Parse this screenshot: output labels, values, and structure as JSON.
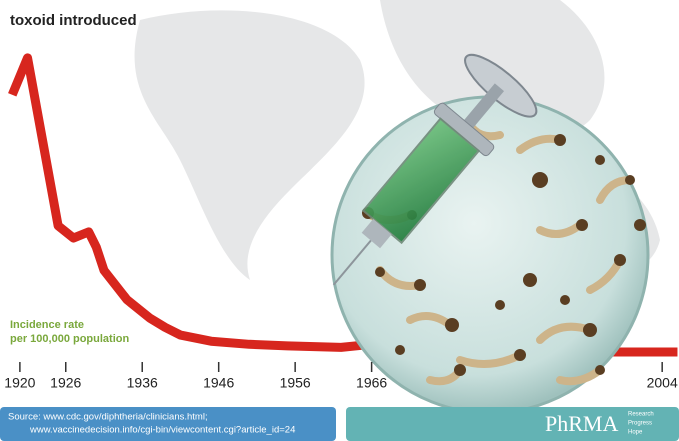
{
  "chart_data": {
    "type": "line",
    "title": "toxoid introduced",
    "y_label_line1": "Incidence rate",
    "y_label_line2": "per 100,000 population",
    "x": [
      1919,
      1921,
      1925,
      1927,
      1929,
      1930,
      1931,
      1934,
      1937,
      1939,
      1941,
      1945,
      1950,
      1955,
      1962,
      1966,
      1970,
      1980,
      1990,
      2000,
      2004,
      2006
    ],
    "values": [
      167,
      191,
      82,
      74,
      78,
      68,
      53,
      34,
      22,
      16,
      11,
      7,
      5,
      4,
      3,
      5,
      2,
      0,
      0,
      0,
      0,
      0
    ],
    "color": "#d7261e",
    "xlim": [
      1917.4,
      2006.2
    ],
    "ylim": [
      0,
      200
    ],
    "xticks": [
      1920,
      1926,
      1936,
      1946,
      1956,
      1966,
      2004
    ],
    "source_line1": "Source: www.cdc.gov/diphtheria/clinicians.html;",
    "source_line2": "www.vaccinedecision.info/cgi-bin/viewcontent.cgi?article_id=24",
    "logo": "PhRMA",
    "logo_words": [
      "Research",
      "Progress",
      "Hope"
    ]
  }
}
